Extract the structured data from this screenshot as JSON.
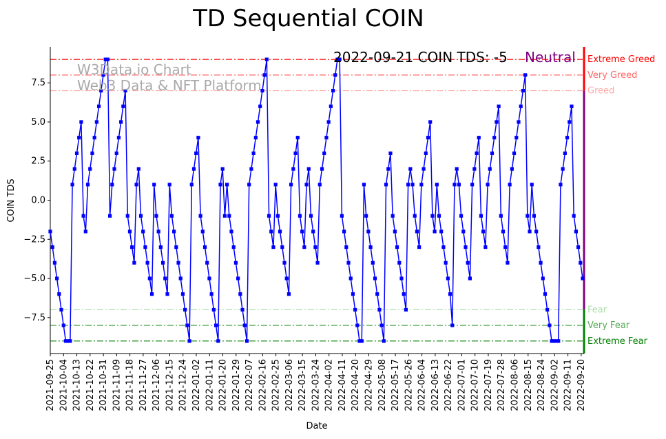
{
  "chart_data": {
    "type": "line",
    "title": "TD Sequential COIN",
    "xlabel": "Date",
    "ylabel": "COIN TDS",
    "ylim": [
      -9.8,
      9.8
    ],
    "yticks": [
      -7.5,
      -5.0,
      -2.5,
      0.0,
      2.5,
      5.0,
      7.5
    ],
    "ytick_labels": [
      "−7.5",
      "−5.0",
      "−2.5",
      "0.0",
      "2.5",
      "5.0",
      "7.5"
    ],
    "x_start": "2021-09-25",
    "x_end": "2022-09-21",
    "xtick_labels": [
      "2021-09-25",
      "2021-10-04",
      "2021-10-13",
      "2021-10-22",
      "2021-10-31",
      "2021-11-09",
      "2021-11-18",
      "2021-11-27",
      "2021-12-06",
      "2021-12-15",
      "2021-12-24",
      "2022-01-02",
      "2022-01-11",
      "2022-01-20",
      "2022-01-29",
      "2022-02-07",
      "2022-02-16",
      "2022-02-25",
      "2022-03-06",
      "2022-03-15",
      "2022-03-24",
      "2022-04-02",
      "2022-04-11",
      "2022-04-20",
      "2022-04-29",
      "2022-05-08",
      "2022-05-17",
      "2022-05-26",
      "2022-06-04",
      "2022-06-13",
      "2022-06-22",
      "2022-07-01",
      "2022-07-10",
      "2022-07-19",
      "2022-07-28",
      "2022-08-06",
      "2022-08-15",
      "2022-08-24",
      "2022-09-02",
      "2022-09-11",
      "2022-09-20"
    ],
    "grid": false,
    "series": [
      {
        "name": "",
        "color": "#0000ff",
        "marker": "square",
        "values": [
          -2,
          -3,
          -4,
          -5,
          -6,
          -7,
          -8,
          -9,
          -9,
          -9,
          1,
          2,
          3,
          4,
          5,
          -1,
          -2,
          1,
          2,
          3,
          4,
          5,
          6,
          7,
          8,
          9,
          9,
          -1,
          1,
          2,
          3,
          4,
          5,
          6,
          7,
          -1,
          -2,
          -3,
          -4,
          1,
          2,
          -1,
          -2,
          -3,
          -4,
          -5,
          -6,
          1,
          -1,
          -2,
          -3,
          -4,
          -5,
          -6,
          1,
          -1,
          -2,
          -3,
          -4,
          -5,
          -6,
          -7,
          -8,
          -9,
          1,
          2,
          3,
          4,
          -1,
          -2,
          -3,
          -4,
          -5,
          -6,
          -7,
          -8,
          -9,
          1,
          2,
          -1,
          1,
          -1,
          -2,
          -3,
          -4,
          -5,
          -6,
          -7,
          -8,
          -9,
          1,
          2,
          3,
          4,
          5,
          6,
          7,
          8,
          9,
          -1,
          -2,
          -3,
          1,
          -1,
          -2,
          -3,
          -4,
          -5,
          -6,
          1,
          2,
          3,
          4,
          -1,
          -2,
          -3,
          1,
          2,
          -1,
          -2,
          -3,
          -4,
          1,
          2,
          3,
          4,
          5,
          6,
          7,
          8,
          9,
          9,
          -1,
          -2,
          -3,
          -4,
          -5,
          -6,
          -7,
          -8,
          -9,
          -9,
          1,
          -1,
          -2,
          -3,
          -4,
          -5,
          -6,
          -7,
          -8,
          -9,
          1,
          2,
          3,
          -1,
          -2,
          -3,
          -4,
          -5,
          -6,
          -7,
          1,
          2,
          1,
          -1,
          -2,
          -3,
          1,
          2,
          3,
          4,
          5,
          -1,
          -2,
          1,
          -1,
          -2,
          -3,
          -4,
          -5,
          -6,
          -8,
          1,
          2,
          1,
          -1,
          -2,
          -3,
          -4,
          -5,
          1,
          2,
          3,
          4,
          -1,
          -2,
          -3,
          1,
          2,
          3,
          4,
          5,
          6,
          -1,
          -2,
          -3,
          -4,
          1,
          2,
          3,
          4,
          5,
          6,
          7,
          8,
          -1,
          -2,
          1,
          -1,
          -2,
          -3,
          -4,
          -5,
          -6,
          -7,
          -8,
          -9,
          -9,
          -9,
          -9,
          1,
          2,
          3,
          4,
          5,
          6,
          -1,
          -2,
          -3,
          -4,
          -5
        ]
      }
    ],
    "levels": [
      {
        "name": "Extreme Greed",
        "value": 9,
        "color": "#ff0000",
        "style": "dashdot"
      },
      {
        "name": "Very Greed",
        "value": 8,
        "color": "#ff6666",
        "style": "dashdot"
      },
      {
        "name": "Greed",
        "value": 7,
        "color": "#ffaaaa",
        "style": "dashdot"
      },
      {
        "name": "Fear",
        "value": -7,
        "color": "#aadda8",
        "style": "dashdot"
      },
      {
        "name": "Very Fear",
        "value": -8,
        "color": "#55aa55",
        "style": "dashdot"
      },
      {
        "name": "Extreme Fear",
        "value": -9,
        "color": "#008000",
        "style": "dashdot"
      }
    ],
    "annotation": {
      "text": "2022-09-21 COIN TDS: -5",
      "sentiment": "Neutral",
      "sentiment_color": "#800080"
    },
    "watermark": {
      "line1": "W3Data.io Chart",
      "line2": "Web3 Data & NFT Platform",
      "color": "#aaaaaa"
    },
    "side_bar_colors": {
      "top": "#ff0000",
      "middle": "#800080",
      "bottom": "#008000"
    }
  }
}
